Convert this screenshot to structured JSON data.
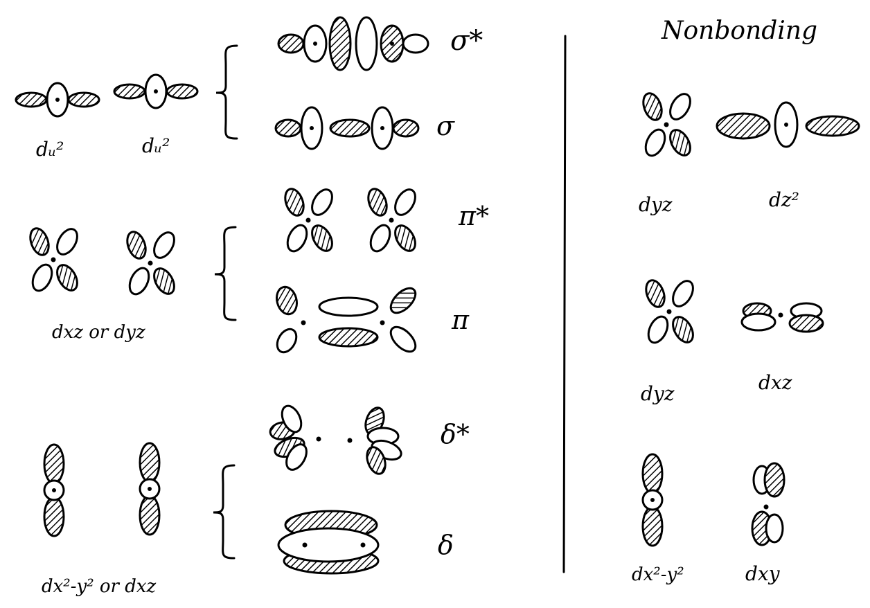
{
  "left": {
    "row1": {
      "labels": [
        "dᵤ²",
        "dᵤ²"
      ],
      "mo_top": "σ*",
      "mo_bottom": "σ"
    },
    "row2": {
      "label": "dxz or dyz",
      "mo_top": "π*",
      "mo_bottom": "π"
    },
    "row3": {
      "label": "dx²-y² or dxz",
      "mo_top": "δ*",
      "mo_bottom": "δ"
    }
  },
  "right": {
    "title": "Nonbonding",
    "row1": {
      "labels": [
        "dyz",
        "dz²"
      ]
    },
    "row2": {
      "labels": [
        "dyz",
        "dxz"
      ]
    },
    "row3": {
      "labels": [
        "dx²-y²",
        "dxy"
      ]
    }
  }
}
